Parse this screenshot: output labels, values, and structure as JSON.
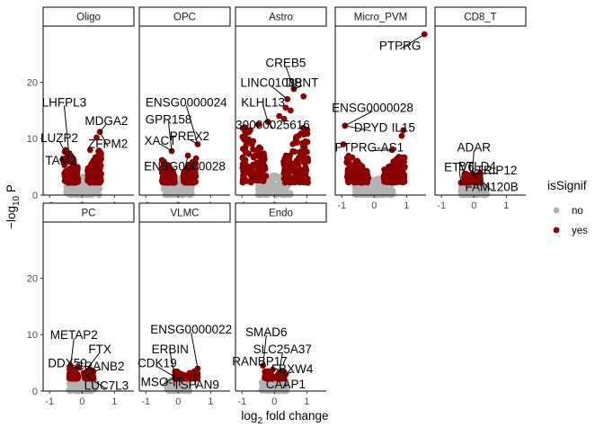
{
  "chart_data": {
    "type": "scatter",
    "subtype": "faceted volcano plot",
    "xlabel_main": "log",
    "xlabel_sub": "2",
    "xlabel_tail": " fold change",
    "ylabel_main": "−log",
    "ylabel_sub": "10",
    "ylabel_tail": " P",
    "xlim": [
      -1.2,
      1.6
    ],
    "ylim": [
      0,
      29
    ],
    "x_ticks": [
      -1,
      0,
      1
    ],
    "y_ticks": [
      0,
      10,
      20
    ],
    "legend": {
      "title": "isSignif",
      "position": "right",
      "items": [
        {
          "label": "no",
          "color": "#b3b3b3"
        },
        {
          "label": "yes",
          "color": "#8b0000"
        }
      ]
    },
    "colors": {
      "no": "#b3b3b3",
      "yes": "#8b0000"
    },
    "facets": [
      {
        "name": "Oligo",
        "grey_cloud": {
          "x_range": [
            -0.5,
            0.55
          ],
          "y_max": 3.5
        },
        "red_cloud": {
          "x_range": [
            -0.55,
            0.6
          ],
          "y_max": 8
        },
        "points": [
          {
            "x": 0.55,
            "y": 11.2
          },
          {
            "x": 0.45,
            "y": 10.2
          },
          {
            "x": 0.25,
            "y": 8.0
          },
          {
            "x": -0.45,
            "y": 6.8
          },
          {
            "x": -0.4,
            "y": 7.0
          },
          {
            "x": -0.6,
            "y": 6.3
          }
        ],
        "labels": [
          {
            "text": "LHFPL3",
            "x": -0.55,
            "y": 16.5
          },
          {
            "text": "MDGA2",
            "x": 0.75,
            "y": 13.2
          },
          {
            "text": "LUZP2",
            "x": -0.7,
            "y": 10.2
          },
          {
            "text": "ZFPM2",
            "x": 0.8,
            "y": 9.2
          },
          {
            "text": "TAM2",
            "x": -0.65,
            "y": 6.2
          }
        ]
      },
      {
        "name": "OPC",
        "grey_cloud": {
          "x_range": [
            -0.45,
            0.45
          ],
          "y_max": 3.2
        },
        "red_cloud": {
          "x_range": [
            -0.5,
            0.55
          ],
          "y_max": 6
        },
        "points": [
          {
            "x": 0.6,
            "y": 9.0
          },
          {
            "x": -0.2,
            "y": 7.8
          },
          {
            "x": 0.3,
            "y": 7.0
          },
          {
            "x": -0.5,
            "y": 6.2
          },
          {
            "x": 0.55,
            "y": 6.5
          }
        ],
        "labels": [
          {
            "text": "ENSG0000024",
            "x": 0.25,
            "y": 16.5
          },
          {
            "text": "GPR158",
            "x": -0.3,
            "y": 13.5
          },
          {
            "text": "PREX2",
            "x": 0.35,
            "y": 10.5
          },
          {
            "text": "XACT",
            "x": -0.55,
            "y": 9.7
          },
          {
            "text": "ENSG0000028",
            "x": 0.2,
            "y": 5.2
          }
        ]
      },
      {
        "name": "Astro",
        "grey_cloud": {
          "x_range": [
            -0.5,
            0.5
          ],
          "y_max": 3.5
        },
        "red_cloud": {
          "x_range": [
            -1.0,
            1.05
          ],
          "y_max": 12
        },
        "points": [
          {
            "x": 0.9,
            "y": 17.5
          },
          {
            "x": 0.6,
            "y": 18.8
          },
          {
            "x": 0.4,
            "y": 17.0
          },
          {
            "x": 0.35,
            "y": 15.5
          },
          {
            "x": 0.15,
            "y": 14.0
          },
          {
            "x": 0.3,
            "y": 13.5
          },
          {
            "x": -0.2,
            "y": 13.0
          },
          {
            "x": 0.5,
            "y": 15.0
          },
          {
            "x": -0.5,
            "y": 12.5
          }
        ],
        "labels": [
          {
            "text": "CREB5",
            "x": 0.35,
            "y": 23.5
          },
          {
            "text": "LINC01088",
            "x": -0.1,
            "y": 20.0
          },
          {
            "text": "DPNT",
            "x": 0.85,
            "y": 20.0
          },
          {
            "text": "KLHL13",
            "x": -0.35,
            "y": 16.5
          },
          {
            "text": "30000025616",
            "x": -0.05,
            "y": 12.5
          }
        ]
      },
      {
        "name": "Micro_PVM",
        "grey_cloud": {
          "x_range": [
            -0.6,
            0.6
          ],
          "y_max": 3.0
        },
        "red_cloud": {
          "x_range": [
            -0.85,
            0.95
          ],
          "y_max": 7
        },
        "points": [
          {
            "x": 1.55,
            "y": 28.5
          },
          {
            "x": -0.9,
            "y": 12.3
          },
          {
            "x": -0.95,
            "y": 9.0
          },
          {
            "x": 0.85,
            "y": 10.5
          },
          {
            "x": 0.9,
            "y": 11.5
          },
          {
            "x": 0.55,
            "y": 8.0
          }
        ],
        "labels": [
          {
            "text": "PTPRG",
            "x": 0.8,
            "y": 26.5
          },
          {
            "text": "ENSG0000028",
            "x": -0.05,
            "y": 15.5
          },
          {
            "text": "DPYD",
            "x": -0.1,
            "y": 12.0
          },
          {
            "text": "IL15",
            "x": 0.9,
            "y": 12.0
          },
          {
            "text": "PTPRG-AS1",
            "x": -0.15,
            "y": 8.5
          }
        ]
      },
      {
        "name": "CD8_T",
        "grey_cloud": {
          "x_range": [
            -0.4,
            0.4
          ],
          "y_max": 2.0
        },
        "red_cloud": {
          "x_range": [
            -0.3,
            0.2
          ],
          "y_max": 4
        },
        "points": [
          {
            "x": -0.4,
            "y": 2.2
          },
          {
            "x": -0.15,
            "y": 3.5
          },
          {
            "x": -0.2,
            "y": 3.0
          },
          {
            "x": -0.05,
            "y": 3.8
          },
          {
            "x": -0.25,
            "y": 2.6
          }
        ],
        "labels": [
          {
            "text": "ADAR",
            "x": 0.0,
            "y": 8.5
          },
          {
            "text": "ETV6",
            "x": -0.45,
            "y": 5.0
          },
          {
            "text": "BTLD4",
            "x": 0.1,
            "y": 5.2
          },
          {
            "text": "TRIP12",
            "x": 0.7,
            "y": 4.5
          },
          {
            "text": "FAM120B",
            "x": 0.55,
            "y": 1.5
          }
        ]
      },
      {
        "name": "PC",
        "grey_cloud": {
          "x_range": [
            -0.4,
            0.4
          ],
          "y_max": 2.2
        },
        "red_cloud": {
          "x_range": [
            -0.4,
            0.35
          ],
          "y_max": 4
        },
        "points": [
          {
            "x": -0.35,
            "y": 4.5
          },
          {
            "x": -0.2,
            "y": 3.8
          },
          {
            "x": -0.1,
            "y": 4.2
          },
          {
            "x": 0.05,
            "y": 3.2
          },
          {
            "x": 0.1,
            "y": 2.8
          }
        ],
        "labels": [
          {
            "text": "METAP2",
            "x": -0.25,
            "y": 10.0
          },
          {
            "text": "FTX",
            "x": 0.55,
            "y": 7.5
          },
          {
            "text": "DDX50",
            "x": -0.45,
            "y": 5.0
          },
          {
            "text": "CRANB2",
            "x": 0.55,
            "y": 4.5
          },
          {
            "text": "LUC7L3",
            "x": 0.75,
            "y": 1.0
          }
        ]
      },
      {
        "name": "VLMC",
        "grey_cloud": {
          "x_range": [
            -0.35,
            0.35
          ],
          "y_max": 2.0
        },
        "red_cloud": {
          "x_range": [
            -0.1,
            0.6
          ],
          "y_max": 3.5
        },
        "points": [
          {
            "x": 0.6,
            "y": 4.0
          },
          {
            "x": 0.5,
            "y": 3.5
          },
          {
            "x": 0.35,
            "y": 3.2
          },
          {
            "x": 0.2,
            "y": 2.8
          },
          {
            "x": -0.1,
            "y": 2.5
          }
        ],
        "labels": [
          {
            "text": "ENSG0000022",
            "x": 0.4,
            "y": 11.0
          },
          {
            "text": "ERBIN",
            "x": -0.25,
            "y": 7.5
          },
          {
            "text": "CDK19",
            "x": -0.65,
            "y": 5.0
          },
          {
            "text": "MSO-IT",
            "x": -0.5,
            "y": 1.7
          },
          {
            "text": "TSPAN9",
            "x": 0.55,
            "y": 1.2
          }
        ]
      },
      {
        "name": "Endo",
        "grey_cloud": {
          "x_range": [
            -0.4,
            0.4
          ],
          "y_max": 2.0
        },
        "red_cloud": {
          "x_range": [
            -0.3,
            0.3
          ],
          "y_max": 3.5
        },
        "points": [
          {
            "x": -0.35,
            "y": 4.5
          },
          {
            "x": -0.2,
            "y": 3.5
          },
          {
            "x": -0.05,
            "y": 3.8
          },
          {
            "x": 0.15,
            "y": 3.3
          },
          {
            "x": 0.35,
            "y": 3.0
          }
        ],
        "labels": [
          {
            "text": "SMAD6",
            "x": -0.25,
            "y": 10.5
          },
          {
            "text": "SLC25A37",
            "x": 0.25,
            "y": 7.5
          },
          {
            "text": "RANBP17",
            "x": -0.45,
            "y": 5.3
          },
          {
            "text": "FBXW4",
            "x": 0.55,
            "y": 4.0
          },
          {
            "text": "CAAP1",
            "x": 0.35,
            "y": 1.3
          }
        ]
      }
    ]
  }
}
